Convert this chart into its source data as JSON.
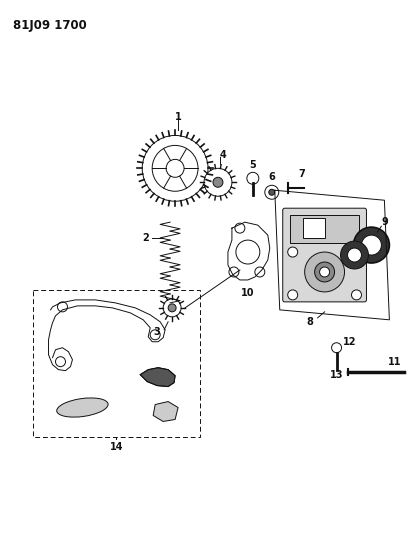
{
  "title": "81J09 1700",
  "background_color": "#ffffff",
  "fig_width": 4.12,
  "fig_height": 5.33,
  "dpi": 100
}
